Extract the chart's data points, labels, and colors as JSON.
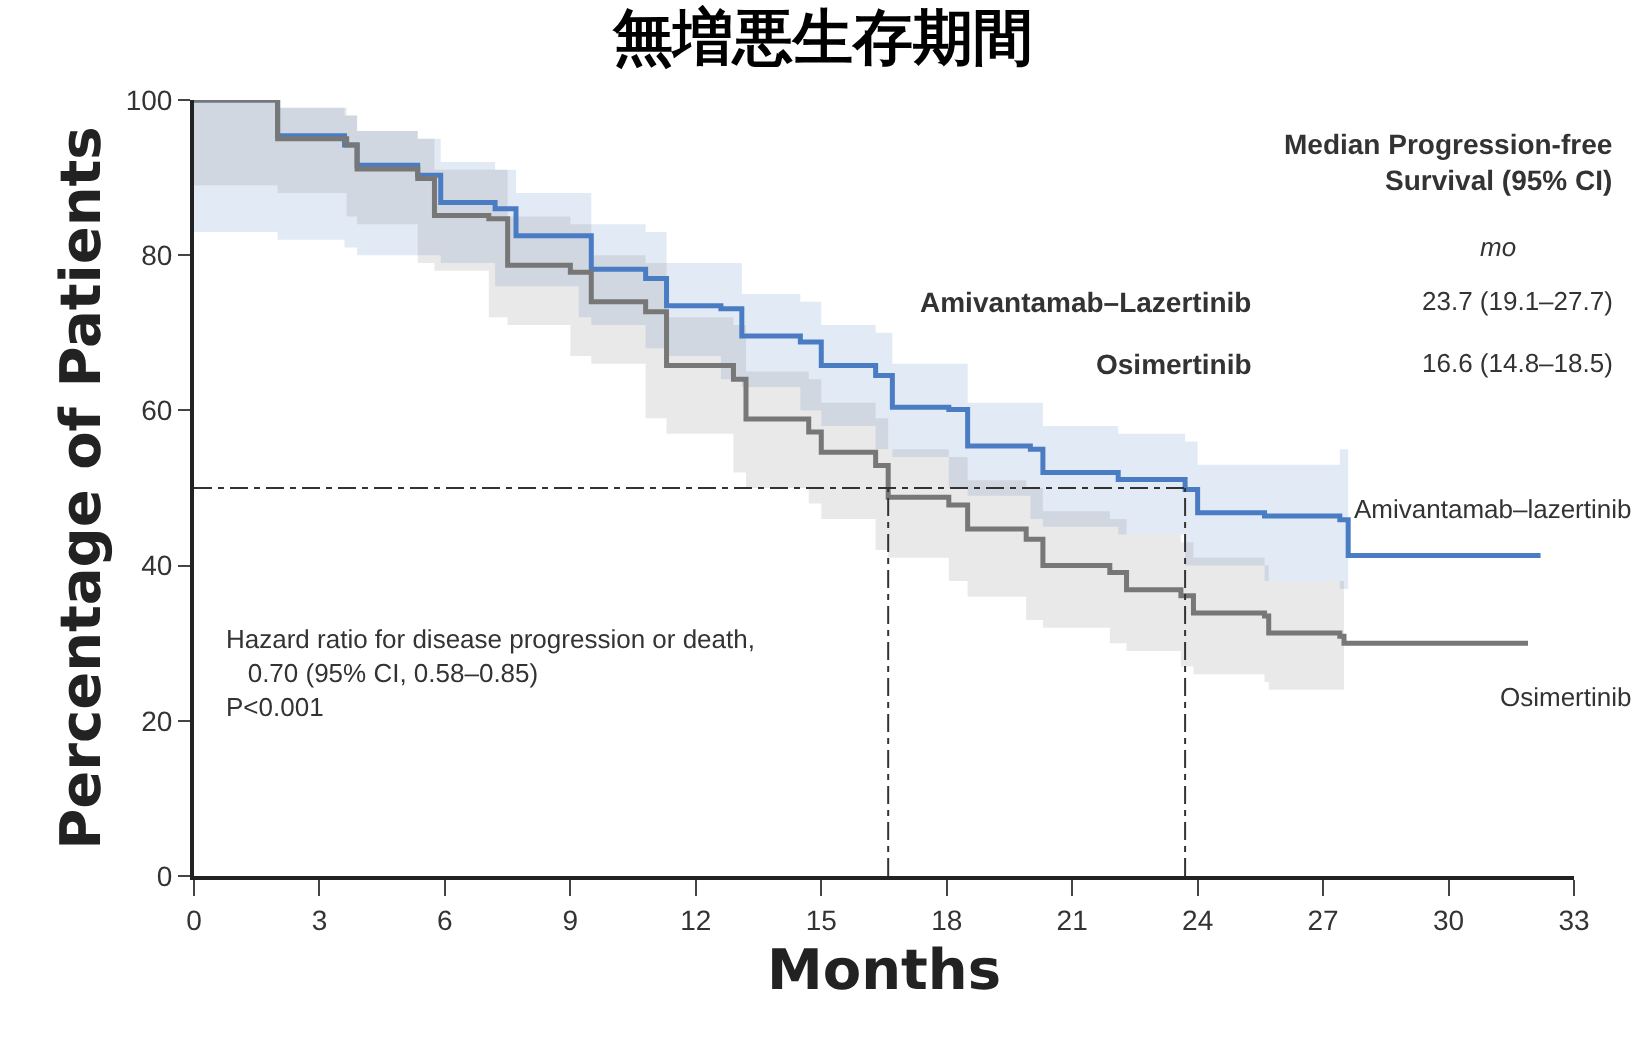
{
  "chart_data": {
    "type": "step",
    "title": "無増悪生存期間",
    "xlabel": "Months",
    "ylabel": "Percentage of Patients",
    "xlim": [
      0,
      33
    ],
    "xticks": [
      0,
      3,
      6,
      9,
      12,
      15,
      18,
      21,
      24,
      27,
      30,
      33
    ],
    "ylim": [
      0,
      100
    ],
    "yticks": [
      0,
      20,
      40,
      60,
      80,
      100
    ],
    "legend": false,
    "line_style": "solid",
    "marker": "none",
    "series": [
      {
        "name": "Amivantamab–lazertinib",
        "color": "#4a7cc4",
        "x": [
          0,
          2.0,
          3.6,
          3.9,
          5.35,
          5.9,
          7.2,
          7.7,
          9.2,
          9.5,
          10.8,
          11.3,
          12.6,
          13.1,
          14.5,
          15.0,
          16.3,
          16.7,
          18.05,
          18.5,
          20.0,
          20.3,
          22.1,
          23.7,
          24.0,
          25.6,
          27.4,
          27.6,
          32.2
        ],
        "values": [
          100,
          95.4,
          94.2,
          91.6,
          90.3,
          86.8,
          86,
          82.5,
          82.5,
          78.2,
          77,
          73.5,
          73.1,
          69.6,
          68.8,
          65.8,
          64.5,
          60.4,
          60.1,
          55.4,
          55,
          52,
          51.1,
          49.8,
          46.8,
          46.4,
          45.9,
          41.3,
          41.3
        ],
        "lower": [
          83,
          83,
          82,
          81,
          80,
          80,
          79,
          76,
          76,
          72,
          71,
          68,
          67,
          64,
          63,
          60,
          58,
          55,
          54,
          50,
          49,
          46,
          45,
          44,
          40,
          40,
          38,
          37,
          null
        ],
        "upper": [
          100,
          99,
          98,
          96,
          95,
          92,
          91,
          88,
          88,
          84,
          83,
          79,
          79,
          75,
          74,
          71,
          70,
          66,
          66,
          61,
          61,
          58,
          57,
          56,
          53,
          53,
          55,
          55,
          null
        ]
      },
      {
        "name": "Osimertinib",
        "color": "#777777",
        "x": [
          0,
          2.0,
          3.65,
          3.9,
          5.35,
          5.75,
          7.05,
          7.5,
          9.0,
          9.5,
          10.8,
          11.3,
          12.9,
          13.2,
          14.7,
          15.0,
          16.3,
          16.6,
          18.05,
          18.5,
          19.9,
          20.3,
          21.9,
          22.3,
          23.6,
          23.9,
          25.6,
          25.7,
          27.4,
          27.5,
          31.9
        ],
        "values": [
          100,
          95,
          94.2,
          91.1,
          89.9,
          85.1,
          84.7,
          78.7,
          77.8,
          74,
          72.7,
          65.8,
          64,
          58.9,
          57.2,
          54.6,
          52.9,
          48.8,
          47.8,
          44.7,
          43.4,
          40,
          39.1,
          36.9,
          36.1,
          33.9,
          33.5,
          31.3,
          30.9,
          30,
          30
        ],
        "lower": [
          92,
          89,
          88,
          85,
          84,
          79,
          78,
          72,
          71,
          67,
          66,
          59,
          57,
          52,
          50,
          48,
          46,
          42,
          41,
          38,
          36,
          33,
          32,
          30,
          29,
          27,
          26,
          25,
          24,
          24,
          null
        ],
        "upper": [
          100,
          99,
          98,
          96,
          95,
          91,
          91,
          85,
          84,
          80,
          79,
          72,
          71,
          65,
          64,
          61,
          59,
          55,
          54,
          51,
          50,
          47,
          46,
          44,
          43,
          41,
          40,
          38,
          38,
          38,
          null
        ]
      }
    ],
    "ref_lines": [
      {
        "axis": "y",
        "value": 50,
        "color": "#333333",
        "line_style": "dashed"
      },
      {
        "axis": "x",
        "value": 16.6,
        "color": "#333333",
        "line_style": "dashed"
      },
      {
        "axis": "x",
        "value": 23.7,
        "color": "#333333",
        "line_style": "dashed"
      }
    ],
    "annotations": [
      "Median Progression-free\nSurvival (95% CI)",
      "mo",
      "Amivantamab–Lazertinib",
      "23.7 (19.1–27.7)",
      "Osimertinib",
      "16.6 (14.8–18.5)",
      "Hazard ratio for disease progression or death,\n   0.70 (95% CI, 0.58–0.85)\nP<0.001"
    ]
  }
}
